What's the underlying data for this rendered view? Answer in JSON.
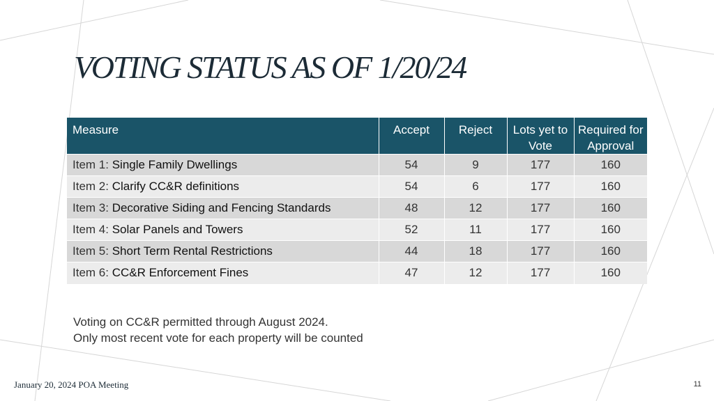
{
  "slide": {
    "title": "VOTING STATUS AS OF 1/20/24",
    "footer": "January 20, 2024 POA Meeting",
    "page_number": "11"
  },
  "table": {
    "headers": {
      "measure": "Measure",
      "accept": "Accept",
      "reject": "Reject",
      "lots_yet": "Lots yet to Vote",
      "required": "Required for Approval"
    },
    "rows": [
      {
        "prefix": "Item 1:",
        "name": "Single Family Dwellings",
        "accept": "54",
        "reject": "9",
        "lots_yet": "177",
        "required": "160"
      },
      {
        "prefix": "Item 2:",
        "name": "Clarify CC&R definitions",
        "accept": "54",
        "reject": "6",
        "lots_yet": "177",
        "required": "160"
      },
      {
        "prefix": "Item 3:",
        "name": "Decorative Siding and Fencing Standards",
        "accept": "48",
        "reject": "12",
        "lots_yet": "177",
        "required": "160"
      },
      {
        "prefix": "Item 4:",
        "name": "Solar Panels and Towers",
        "accept": "52",
        "reject": "11",
        "lots_yet": "177",
        "required": "160"
      },
      {
        "prefix": "Item 5:",
        "name": "Short Term Rental Restrictions",
        "accept": "44",
        "reject": "18",
        "lots_yet": "177",
        "required": "160"
      },
      {
        "prefix": "Item 6:",
        "name": "CC&R Enforcement Fines",
        "accept": "47",
        "reject": "12",
        "lots_yet": "177",
        "required": "160"
      }
    ]
  },
  "notes": [
    "Voting on CC&R permitted through August 2024.",
    "Only most recent vote for each property will be counted"
  ],
  "colors": {
    "header_bg": "#1a5468",
    "row_dark": "#d8d8d8",
    "row_light": "#ececec",
    "decor_lines": "#d6d6d6"
  }
}
